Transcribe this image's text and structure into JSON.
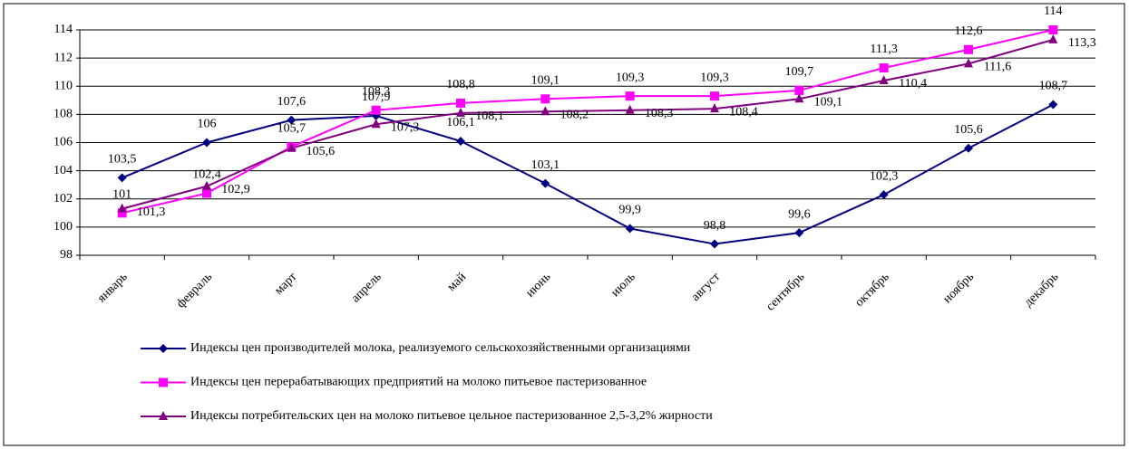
{
  "chart_data": {
    "type": "line",
    "categories": [
      "январь",
      "февраль",
      "март",
      "апрель",
      "май",
      "июнь",
      "июль",
      "август",
      "сентябрь",
      "октябрь",
      "ноябрь",
      "декабрь"
    ],
    "series": [
      {
        "name": "Индексы цен производителей молока, реализуемого сельскохозяйственными организациями",
        "color": "#000080",
        "marker": "diamond",
        "values": [
          103.5,
          106,
          107.6,
          107.9,
          106.1,
          103.1,
          99.9,
          98.8,
          99.6,
          102.3,
          105.6,
          108.7
        ],
        "value_labels": [
          "103,5",
          "106",
          "107,6",
          "107,9",
          "106,1",
          "103,1",
          "99,9",
          "98,8",
          "99,6",
          "102,3",
          "105,6",
          "108,7"
        ]
      },
      {
        "name": "Индексы цен перерабатывающих предприятий на молоко питьевое пастеризованное",
        "color": "#ff00ff",
        "marker": "square",
        "values": [
          101,
          102.4,
          105.7,
          108.3,
          108.8,
          109.1,
          109.3,
          109.3,
          109.7,
          111.3,
          112.6,
          114
        ],
        "value_labels": [
          "101",
          "102,4",
          "105,7",
          "108,3",
          "108,8",
          "109,1",
          "109,3",
          "109,3",
          "109,7",
          "111,3",
          "112,6",
          "114"
        ]
      },
      {
        "name": "Индексы потребительских цен на молоко питьевое цельное пастеризованное 2,5-3,2% жирности",
        "color": "#800080",
        "marker": "triangle",
        "values": [
          101.3,
          102.9,
          105.6,
          107.3,
          108.1,
          108.2,
          108.3,
          108.4,
          109.1,
          110.4,
          111.6,
          113.3
        ],
        "value_labels": [
          "101,3",
          "102,9",
          "105,6",
          "107,3",
          "108,1",
          "108,2",
          "108,3",
          "108,4",
          "109,1",
          "110,4",
          "111,6",
          "113,3"
        ]
      }
    ],
    "ylim": [
      98,
      114
    ],
    "yticks": [
      98,
      100,
      102,
      104,
      106,
      108,
      110,
      112,
      114
    ],
    "grid": true
  }
}
